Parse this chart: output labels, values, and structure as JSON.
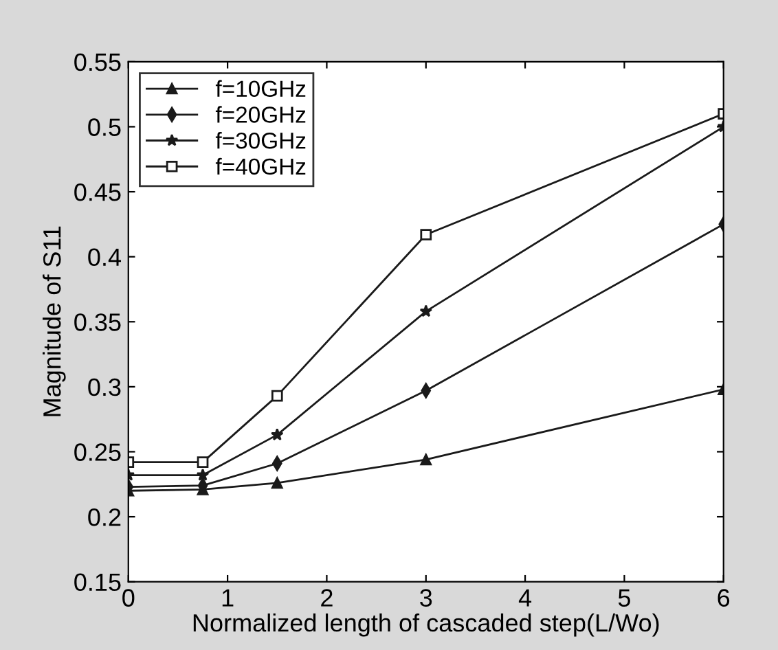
{
  "chart_data": {
    "type": "line",
    "xlabel": "Normalized length of cascaded step(L/Wo)",
    "ylabel": "Magnitude of S11",
    "x": [
      0,
      0.75,
      1.5,
      3,
      6
    ],
    "series": [
      {
        "name": "f=10GHz",
        "color": "#1a1a1a",
        "marker": "triangle",
        "values": [
          0.22,
          0.221,
          0.226,
          0.244,
          0.298
        ]
      },
      {
        "name": "f=20GHz",
        "color": "#1a1a1a",
        "marker": "diamond",
        "values": [
          0.223,
          0.224,
          0.241,
          0.297,
          0.425
        ]
      },
      {
        "name": "f=30GHz",
        "color": "#1a1a1a",
        "marker": "star",
        "values": [
          0.232,
          0.232,
          0.263,
          0.358,
          0.5
        ]
      },
      {
        "name": "f=40GHz",
        "color": "#1a1a1a",
        "marker": "square",
        "values": [
          0.242,
          0.242,
          0.293,
          0.417,
          0.51
        ]
      }
    ],
    "xlim": [
      0,
      6
    ],
    "xticks": [
      0,
      1,
      2,
      3,
      4,
      5,
      6
    ],
    "ylim": [
      0.15,
      0.55
    ],
    "yticks": [
      0.15,
      0.2,
      0.25,
      0.3,
      0.35,
      0.4,
      0.45,
      0.5,
      0.55
    ],
    "grid": false,
    "legend": "top left",
    "line_style": "solid"
  }
}
